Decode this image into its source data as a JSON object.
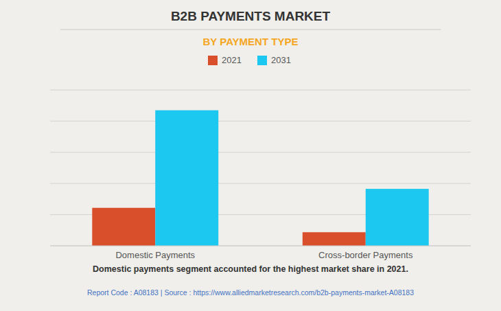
{
  "chart_data": {
    "type": "bar",
    "title": "B2B PAYMENTS MARKET",
    "subtitle": "BY PAYMENT TYPE",
    "categories": [
      "Domestic Payments",
      "Cross-border Payments"
    ],
    "series": [
      {
        "name": "2021",
        "color": "#D94F2B",
        "values": [
          28,
          10
        ]
      },
      {
        "name": "2031",
        "color": "#1CC8F0",
        "values": [
          100,
          42
        ]
      }
    ],
    "ylim": [
      0,
      115
    ],
    "yticks": [
      0,
      23,
      46,
      69,
      92,
      115
    ],
    "grid": true,
    "legend": "top",
    "tick_labels": "x",
    "annotations": [
      "Domestic payments segment accounted for the highest market share in 2021.",
      "Report Code : A08183  |  Source : https://www.alliedmarketresearch.com/b2b-payments-market-A08183"
    ]
  }
}
